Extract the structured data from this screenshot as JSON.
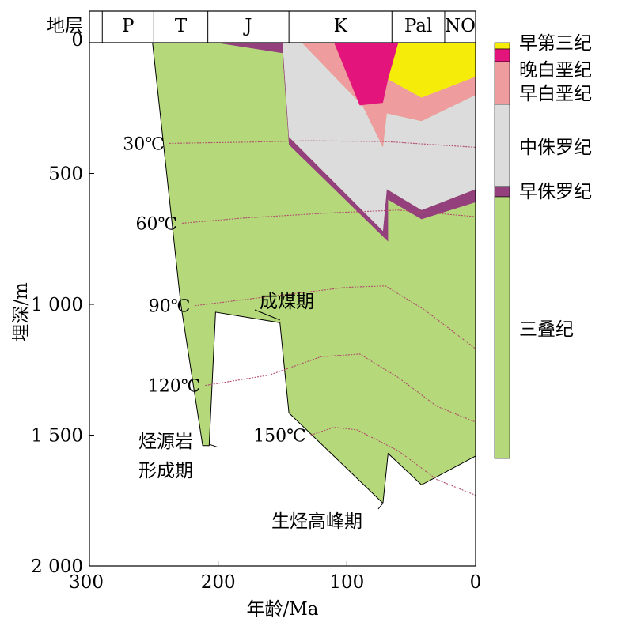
{
  "chart_data": {
    "type": "area",
    "xlabel": "年龄/Ma",
    "ylabel": "埋深/m",
    "xlim": [
      300,
      0
    ],
    "ylim": [
      0,
      2000
    ],
    "x_ticks": [
      {
        "value": 300,
        "label": "300"
      },
      {
        "value": 200,
        "label": "200"
      },
      {
        "value": 100,
        "label": "100"
      },
      {
        "value": 0,
        "label": "0"
      }
    ],
    "y_ticks": [
      {
        "value": 0,
        "label": "0"
      },
      {
        "value": 500,
        "label": "500"
      },
      {
        "value": 1000,
        "label": "1 000"
      },
      {
        "value": 1500,
        "label": "1 500"
      },
      {
        "value": 2000,
        "label": "2 000"
      }
    ],
    "strata_header": {
      "label": "地层",
      "periods": [
        {
          "name": "",
          "start": 300,
          "end": 290
        },
        {
          "name": "P",
          "start": 290,
          "end": 250
        },
        {
          "name": "T",
          "start": 250,
          "end": 208
        },
        {
          "name": "J",
          "start": 208,
          "end": 145
        },
        {
          "name": "K",
          "start": 145,
          "end": 65
        },
        {
          "name": "Pal",
          "start": 65,
          "end": 24
        },
        {
          "name": "NO",
          "start": 24,
          "end": 0
        }
      ]
    },
    "layers": [
      {
        "name": "三叠纪",
        "color": "#b5d97a",
        "points": [
          [
            251,
            0
          ],
          [
            229,
            1000
          ],
          [
            212,
            1540
          ],
          [
            207,
            1540
          ],
          [
            202,
            1030
          ],
          [
            152,
            1070
          ],
          [
            145,
            1415
          ],
          [
            72,
            1760
          ],
          [
            68,
            1570
          ],
          [
            42,
            1690
          ],
          [
            0,
            1580
          ],
          [
            0,
            0
          ]
        ]
      },
      {
        "name": "早侏罗纪",
        "color": "#93407d",
        "points": [
          [
            201,
            0
          ],
          [
            150,
            0
          ],
          [
            145,
            360
          ],
          [
            72,
            720
          ],
          [
            69,
            560
          ],
          [
            42,
            640
          ],
          [
            0,
            560
          ],
          [
            0,
            610
          ],
          [
            42,
            675
          ],
          [
            68,
            600
          ],
          [
            68,
            760
          ],
          [
            145,
            390
          ],
          [
            150,
            40
          ],
          [
            202,
            0
          ]
        ]
      },
      {
        "name": "中侏罗纪",
        "color": "#dcdcdc",
        "points": [
          [
            150,
            0
          ],
          [
            135,
            0
          ],
          [
            88,
            240
          ],
          [
            72,
            400
          ],
          [
            69,
            270
          ],
          [
            42,
            300
          ],
          [
            0,
            200
          ],
          [
            0,
            560
          ],
          [
            42,
            640
          ],
          [
            69,
            560
          ],
          [
            72,
            720
          ],
          [
            145,
            360
          ]
        ]
      },
      {
        "name": "早白垩纪",
        "color": "#ee9c9e",
        "points": [
          [
            135,
            0
          ],
          [
            110,
            0
          ],
          [
            90,
            240
          ],
          [
            72,
            230
          ],
          [
            68,
            140
          ],
          [
            42,
            210
          ],
          [
            0,
            130
          ],
          [
            0,
            200
          ],
          [
            42,
            300
          ],
          [
            69,
            270
          ],
          [
            72,
            400
          ],
          [
            88,
            240
          ]
        ]
      },
      {
        "name": "晚白垩纪",
        "color": "#e3157d",
        "points": [
          [
            110,
            0
          ],
          [
            60,
            0
          ],
          [
            68,
            140
          ],
          [
            72,
            230
          ],
          [
            90,
            240
          ]
        ]
      },
      {
        "name": "早第三纪",
        "color": "#f5ec0a",
        "points": [
          [
            60,
            0
          ],
          [
            0,
            0
          ],
          [
            0,
            130
          ],
          [
            42,
            210
          ],
          [
            68,
            140
          ]
        ]
      }
    ],
    "isotherms": [
      {
        "label": "30℃",
        "points": [
          [
            238,
            385
          ],
          [
            175,
            380
          ],
          [
            130,
            375
          ],
          [
            70,
            378
          ],
          [
            0,
            400
          ]
        ]
      },
      {
        "label": "60℃",
        "points": [
          [
            228,
            690
          ],
          [
            180,
            670
          ],
          [
            110,
            650
          ],
          [
            60,
            640
          ],
          [
            0,
            665
          ]
        ]
      },
      {
        "label": "90℃",
        "points": [
          [
            218,
            1005
          ],
          [
            160,
            970
          ],
          [
            100,
            935
          ],
          [
            70,
            930
          ],
          [
            40,
            1020
          ],
          [
            0,
            1170
          ]
        ]
      },
      {
        "label": "120℃",
        "points": [
          [
            210,
            1310
          ],
          [
            160,
            1270
          ],
          [
            120,
            1200
          ],
          [
            90,
            1190
          ],
          [
            60,
            1280
          ],
          [
            30,
            1390
          ],
          [
            0,
            1450
          ]
        ]
      },
      {
        "label": "150℃",
        "points": [
          [
            128,
            1500
          ],
          [
            110,
            1470
          ],
          [
            92,
            1480
          ],
          [
            60,
            1560
          ],
          [
            30,
            1670
          ],
          [
            0,
            1730
          ]
        ]
      }
    ],
    "annotations": [
      {
        "text": "成煤期",
        "x": 152,
        "y": 1060
      },
      {
        "text": "烃源岩",
        "x": 207,
        "y": 1535
      },
      {
        "text": "形成期",
        "x": 207,
        "y": 1535
      },
      {
        "text": "生烃高峰期",
        "x": 72,
        "y": 1760
      }
    ],
    "legend": {
      "placement": "right",
      "items": [
        {
          "label": "早第三纪",
          "color": "#f5ec0a"
        },
        {
          "label": "晚白垩纪",
          "color": "#e3157d"
        },
        {
          "label": "早白垩纪",
          "color": "#ee9c9e"
        },
        {
          "label": "中侏罗纪",
          "color": "#dcdcdc"
        },
        {
          "label": "早侏罗纪",
          "color": "#93407d"
        },
        {
          "label": "三叠纪",
          "color": "#b5d97a"
        }
      ]
    },
    "isotherm_color": "#b04a6a"
  }
}
